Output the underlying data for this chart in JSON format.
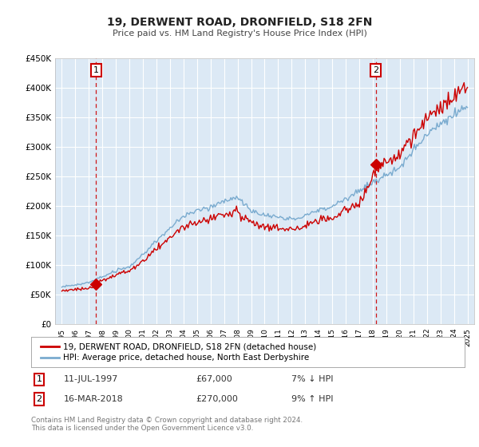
{
  "title": "19, DERWENT ROAD, DRONFIELD, S18 2FN",
  "subtitle": "Price paid vs. HM Land Registry's House Price Index (HPI)",
  "legend_line1": "19, DERWENT ROAD, DRONFIELD, S18 2FN (detached house)",
  "legend_line2": "HPI: Average price, detached house, North East Derbyshire",
  "footnote": "Contains HM Land Registry data © Crown copyright and database right 2024.\nThis data is licensed under the Open Government Licence v3.0.",
  "sale1_label": "1",
  "sale1_date": "11-JUL-1997",
  "sale1_price": "£67,000",
  "sale1_hpi": "7% ↓ HPI",
  "sale2_label": "2",
  "sale2_date": "16-MAR-2018",
  "sale2_price": "£270,000",
  "sale2_hpi": "9% ↑ HPI",
  "sale1_year": 1997.53,
  "sale1_value": 67000,
  "sale2_year": 2018.21,
  "sale2_value": 270000,
  "red_color": "#cc0000",
  "blue_color": "#7aabcf",
  "background_color": "#dce9f5",
  "grid_color": "#ffffff",
  "ylim": [
    0,
    450000
  ],
  "xlim_start": 1994.5,
  "xlim_end": 2025.5
}
